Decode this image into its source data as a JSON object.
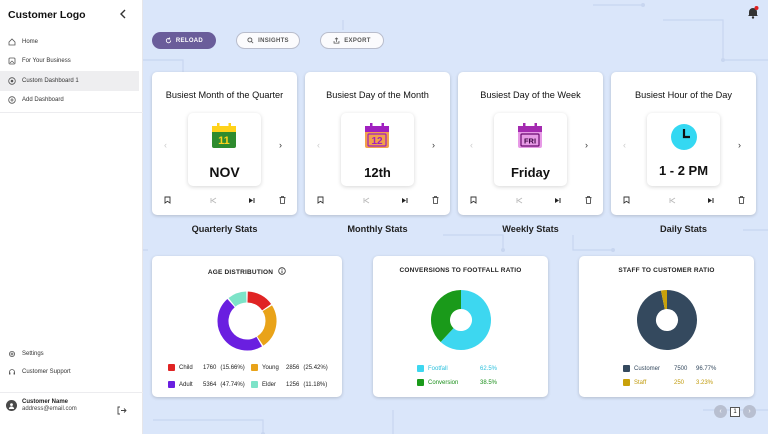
{
  "sidebar": {
    "logo": "Customer Logo",
    "items": [
      {
        "label": "Home",
        "icon": "home-icon"
      },
      {
        "label": "For Your Business",
        "icon": "image-icon"
      },
      {
        "label": "Custom Dashboard 1",
        "icon": "plus-circle-icon",
        "active": true
      },
      {
        "label": "Add Dashboard",
        "icon": "plus-circle-icon"
      }
    ],
    "bottom": [
      {
        "label": "Settings",
        "icon": "gear-icon"
      },
      {
        "label": "Customer Support",
        "icon": "headset-icon"
      }
    ],
    "user": {
      "name": "Customer Name",
      "email": "address@email.com"
    }
  },
  "toolbar": {
    "reload": "RELOAD",
    "insights": "INSIGHTS",
    "export": "EXPORT"
  },
  "cards": [
    {
      "title": "Busiest Month of the Quarter",
      "icon_text": "11",
      "value": "NOV",
      "label": "Quarterly Stats",
      "icon_color": "#1f7a1f"
    },
    {
      "title": "Busiest Day of the Month",
      "icon_text": "12",
      "value": "12th",
      "label": "Monthly Stats",
      "icon_color": "#e07a2a"
    },
    {
      "title": "Busiest Day of the Week",
      "icon_text": "FRI",
      "value": "Friday",
      "label": "Weekly Stats",
      "icon_color": "#b03ab8"
    },
    {
      "title": "Busiest Hour of the Day",
      "icon_text": "",
      "value": "1 - 2 PM",
      "label": "Daily Stats",
      "icon_color": "#2ad4f0"
    }
  ],
  "panels": {
    "age": {
      "title": "AGE DISTRIBUTION",
      "chart_data": {
        "type": "pie",
        "categories": [
          "Child",
          "Young",
          "Adult",
          "Elder"
        ],
        "values": [
          1760,
          2856,
          5364,
          1256
        ],
        "percents": [
          "15.66%",
          "25.42%",
          "47.74%",
          "11.18%"
        ],
        "colors": [
          "#e02424",
          "#e9a319",
          "#6a1fe0",
          "#7de3c8"
        ]
      },
      "legend": [
        {
          "name": "Child",
          "count": "1760",
          "pct": "(15.66%)"
        },
        {
          "name": "Young",
          "count": "2856",
          "pct": "(25.42%)"
        },
        {
          "name": "Adult",
          "count": "5364",
          "pct": "(47.74%)"
        },
        {
          "name": "Elder",
          "count": "1256",
          "pct": "(11.18%)"
        }
      ]
    },
    "conversion": {
      "title": "CONVERSIONS TO FOOTFALL RATIO",
      "chart_data": {
        "type": "pie",
        "categories": [
          "Footfall",
          "Conversion"
        ],
        "values": [
          62.5,
          38.5
        ],
        "colors": [
          "#3dd7f0",
          "#1a9a1a"
        ]
      },
      "legend": [
        {
          "name": "Footfall",
          "pct": "62.5%"
        },
        {
          "name": "Conversion",
          "pct": "38.5%"
        }
      ]
    },
    "staff": {
      "title": "STAFF TO CUSTOMER RATIO",
      "chart_data": {
        "type": "pie",
        "categories": [
          "Customer",
          "Staff"
        ],
        "values": [
          7500,
          250
        ],
        "percents": [
          "96.77%",
          "3.23%"
        ],
        "colors": [
          "#34495e",
          "#c9a10a"
        ]
      },
      "legend": [
        {
          "name": "Customer",
          "count": "7500",
          "pct": "96.77%"
        },
        {
          "name": "Staff",
          "count": "250",
          "pct": "3.23%"
        }
      ]
    }
  },
  "pagination": {
    "page": "1"
  }
}
